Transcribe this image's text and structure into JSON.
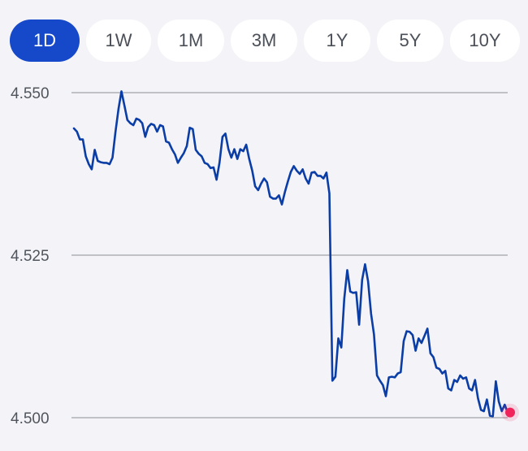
{
  "tabs": [
    {
      "label": "1D",
      "active": true
    },
    {
      "label": "1W",
      "active": false
    },
    {
      "label": "1M",
      "active": false
    },
    {
      "label": "3M",
      "active": false
    },
    {
      "label": "1Y",
      "active": false
    },
    {
      "label": "5Y",
      "active": false
    },
    {
      "label": "10Y",
      "active": false
    }
  ],
  "colors": {
    "accent": "#1549c9",
    "line": "#0b3da6",
    "grid": "#bfc1c6",
    "end_marker": "#f0245b"
  },
  "chart_data": {
    "type": "line",
    "ylim": [
      4.5,
      4.55
    ],
    "yticks": [
      "4.550",
      "4.525",
      "4.500"
    ],
    "grid": true,
    "series": [
      {
        "values": [
          4.5445,
          4.544,
          4.5428,
          4.5428,
          4.5402,
          4.539,
          4.5382,
          4.5412,
          4.5395,
          4.5393,
          4.5392,
          4.5392,
          4.539,
          4.54,
          4.544,
          4.5475,
          4.5502,
          4.548,
          4.5458,
          4.5453,
          4.545,
          4.546,
          4.5458,
          4.5453,
          4.5432,
          4.5447,
          4.5452,
          4.545,
          4.544,
          4.545,
          4.5448,
          4.5425,
          4.5423,
          4.5413,
          4.5405,
          4.5392,
          4.54,
          4.5407,
          4.5418,
          4.5446,
          4.5444,
          4.5412,
          4.5406,
          4.5402,
          4.5392,
          4.539,
          4.5384,
          4.5385,
          4.5366,
          4.5392,
          4.5432,
          4.5437,
          4.5413,
          4.54,
          4.5413,
          4.5398,
          4.5413,
          4.541,
          4.542,
          4.5398,
          4.538,
          4.5356,
          4.535,
          4.536,
          4.5368,
          4.5362,
          4.534,
          4.5337,
          4.5337,
          4.5342,
          4.5328,
          4.5347,
          4.5363,
          4.5378,
          4.5387,
          4.538,
          4.5375,
          4.5382,
          4.5368,
          4.536,
          4.5377,
          4.5378,
          4.5372,
          4.5372,
          4.5368,
          4.5377,
          4.5345,
          4.5057,
          4.5063,
          4.5122,
          4.5108,
          4.5183,
          4.5227,
          4.5194,
          4.5192,
          4.5193,
          4.5143,
          4.5212,
          4.5236,
          4.521,
          4.516,
          4.5128,
          4.5065,
          4.5057,
          4.505,
          4.5033,
          4.5062,
          4.5063,
          4.5062,
          4.5068,
          4.507,
          4.5118,
          4.5133,
          4.5132,
          4.5127,
          4.5103,
          4.5122,
          4.5115,
          4.5126,
          4.5137,
          4.5099,
          4.5093,
          4.5077,
          4.5075,
          4.5068,
          4.5072,
          4.5045,
          4.5042,
          4.5058,
          4.5055,
          4.5065,
          4.506,
          4.5062,
          4.5045,
          4.5042,
          4.5058,
          4.503,
          4.5012,
          4.501,
          4.5028,
          4.5003,
          4.5002,
          4.5056,
          4.5025,
          4.501,
          4.502,
          4.5008
        ]
      }
    ]
  }
}
